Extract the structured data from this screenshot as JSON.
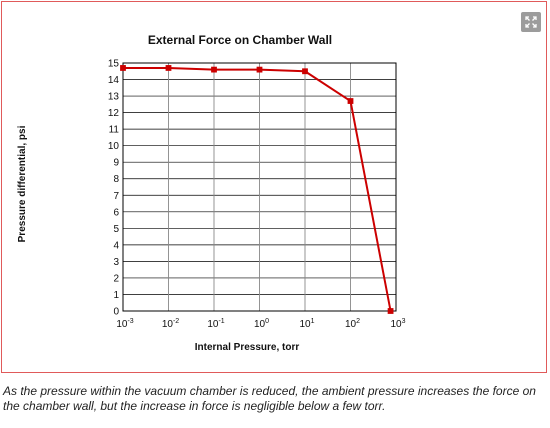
{
  "caption": "As the pressure within the vacuum chamber is reduced, the ambient pressure increases the force on the chamber wall, but the increase in force is negligible below a few torr.",
  "expand_icon": "expand-icon",
  "chart_data": {
    "type": "line",
    "title": "External Force on Chamber Wall",
    "xlabel": "Internal Pressure, torr",
    "ylabel": "Pressure differential, psi",
    "x_scale": "log",
    "xlim": [
      0.001,
      1000
    ],
    "ylim": [
      0,
      15
    ],
    "x_ticks": [
      {
        "base": "10",
        "exp": "-3"
      },
      {
        "base": "10",
        "exp": "-2"
      },
      {
        "base": "10",
        "exp": "-1"
      },
      {
        "base": "10",
        "exp": "0"
      },
      {
        "base": "10",
        "exp": "1"
      },
      {
        "base": "10",
        "exp": "2"
      },
      {
        "base": "10",
        "exp": "3"
      }
    ],
    "y_ticks": [
      "0",
      "1",
      "2",
      "3",
      "4",
      "5",
      "6",
      "7",
      "8",
      "9",
      "10",
      "11",
      "12",
      "13",
      "14",
      "15"
    ],
    "grid": true,
    "line_color": "#cc0000",
    "series": [
      {
        "x": [
          0.001,
          0.01,
          0.1,
          1,
          10,
          100,
          760
        ],
        "y": [
          14.7,
          14.7,
          14.6,
          14.6,
          14.5,
          12.7,
          0
        ]
      }
    ]
  }
}
